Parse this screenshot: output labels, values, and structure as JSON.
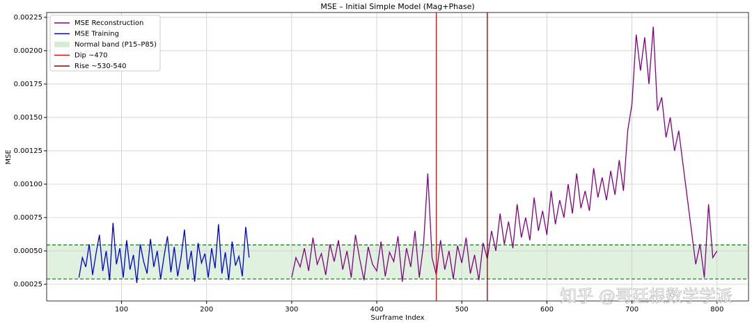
{
  "chart_data": {
    "type": "line",
    "title": "MSE – Initial Simple Model (Mag+Phase)",
    "x_label": "Surframe Index",
    "y_label": "MSE",
    "xlim": [
      12,
      837
    ],
    "xticks": [
      100,
      200,
      300,
      400,
      500,
      600,
      700,
      800
    ],
    "ylim": [
      0.000125,
      0.002286
    ],
    "yticks": [
      0.00025,
      {
        "value": 0.0005,
        "label": "0.00050"
      },
      0.00075,
      {
        "value": 0.001,
        "label": "0.00100"
      },
      0.00125,
      {
        "value": 0.0015,
        "label": "0.00150"
      },
      0.00175,
      {
        "value": 0.002,
        "label": "0.00200"
      },
      0.00225
    ],
    "grid": true,
    "legend": "upper left",
    "series": [
      {
        "name": "MSE Reconstruction",
        "color": "#800080",
        "x": [
          300,
          305,
          310,
          315,
          320,
          325,
          330,
          335,
          340,
          345,
          350,
          355,
          360,
          365,
          370,
          375,
          380,
          385,
          390,
          395,
          400,
          405,
          410,
          415,
          420,
          425,
          430,
          435,
          440,
          445,
          450,
          455,
          460,
          465,
          470,
          475,
          480,
          485,
          490,
          495,
          500,
          505,
          510,
          515,
          520,
          525,
          530,
          535,
          540,
          545,
          550,
          555,
          560,
          565,
          570,
          575,
          580,
          585,
          590,
          595,
          600,
          605,
          610,
          615,
          620,
          625,
          630,
          635,
          640,
          645,
          650,
          655,
          660,
          665,
          670,
          675,
          680,
          685,
          690,
          695,
          700,
          705,
          710,
          715,
          720,
          725,
          730,
          735,
          740,
          745,
          750,
          755,
          760,
          765,
          770,
          775,
          780,
          785,
          790,
          795,
          800
        ],
        "values": [
          0.0003,
          0.00045,
          0.00038,
          0.00052,
          0.00035,
          0.0006,
          0.0004,
          0.00048,
          0.00032,
          0.00055,
          0.00042,
          0.00058,
          0.00036,
          0.0005,
          0.0003,
          0.00062,
          0.00044,
          0.00028,
          0.00053,
          0.0004,
          0.00035,
          0.00057,
          0.00031,
          0.00049,
          0.00042,
          0.00061,
          0.00027,
          0.00052,
          0.00038,
          0.00065,
          0.0003,
          0.00055,
          0.00108,
          0.00045,
          0.00032,
          0.00058,
          0.00036,
          0.0005,
          0.00029,
          0.00054,
          0.00041,
          0.0006,
          0.00033,
          0.00047,
          0.00028,
          0.00056,
          0.00044,
          0.00065,
          0.0005,
          0.00078,
          0.00055,
          0.00072,
          0.00052,
          0.00085,
          0.0006,
          0.00075,
          0.00058,
          0.0009,
          0.00065,
          0.0008,
          0.00062,
          0.00095,
          0.0007,
          0.00088,
          0.00075,
          0.001,
          0.00078,
          0.00108,
          0.00082,
          0.00095,
          0.0008,
          0.00112,
          0.0009,
          0.00105,
          0.00088,
          0.0011,
          0.00092,
          0.00118,
          0.00095,
          0.0014,
          0.0016,
          0.00212,
          0.00185,
          0.0021,
          0.00175,
          0.00218,
          0.00155,
          0.00165,
          0.00135,
          0.0015,
          0.00125,
          0.0014,
          0.00115,
          0.0009,
          0.00065,
          0.0004,
          0.00055,
          0.0003,
          0.00085,
          0.00045,
          0.0005
        ]
      },
      {
        "name": "MSE Training",
        "color": "#0000cd",
        "x": [
          50,
          54,
          58,
          62,
          66,
          70,
          74,
          78,
          82,
          86,
          90,
          94,
          98,
          102,
          106,
          110,
          114,
          118,
          122,
          126,
          130,
          134,
          138,
          142,
          146,
          150,
          154,
          158,
          162,
          166,
          170,
          174,
          178,
          182,
          186,
          190,
          194,
          198,
          202,
          206,
          210,
          214,
          218,
          222,
          226,
          230,
          234,
          238,
          242,
          246,
          250
        ],
        "values": [
          0.0003,
          0.00045,
          0.00038,
          0.00055,
          0.00032,
          0.00048,
          0.00062,
          0.00035,
          0.0005,
          0.00028,
          0.00071,
          0.0004,
          0.00052,
          0.0003,
          0.00058,
          0.00036,
          0.00047,
          0.00026,
          0.00055,
          0.00042,
          0.00033,
          0.00059,
          0.00038,
          0.0005,
          0.00029,
          0.00046,
          0.00061,
          0.00034,
          0.00053,
          0.00031,
          0.00045,
          0.00066,
          0.00036,
          0.0005,
          0.00027,
          0.00056,
          0.00041,
          0.00048,
          0.0003,
          0.00052,
          0.00037,
          0.0007,
          0.00033,
          0.00049,
          0.00028,
          0.00057,
          0.00039,
          0.00046,
          0.00031,
          0.00068,
          0.00045
        ]
      }
    ],
    "band": {
      "name": "Normal band (P15–P85)",
      "low": 0.00029,
      "high": 0.000545,
      "color": "#2ca02c"
    },
    "vlines": [
      {
        "name": "Dip ~470",
        "x": 470,
        "color": "#ff0000"
      },
      {
        "name": "Rise ~530-540",
        "x": 530,
        "color": "#8b0000"
      }
    ],
    "watermark": "知乎 @哥廷根数学学派"
  }
}
